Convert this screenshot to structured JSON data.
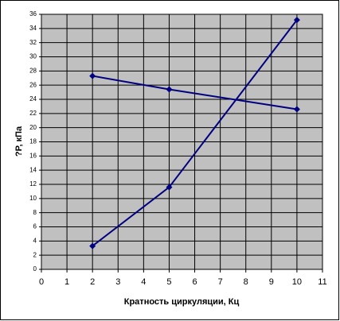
{
  "chart_data": {
    "type": "line",
    "ylabel": "?P, кПа",
    "xlabel": "Кратность циркуляции, Кц",
    "x": [
      2,
      5,
      10
    ],
    "series": [
      {
        "color": "#000080",
        "values": [
          27.3,
          25.4,
          22.6
        ]
      },
      {
        "color": "#000080",
        "values": [
          3.3,
          11.6,
          35.2
        ]
      }
    ],
    "xlim": [
      0,
      11
    ],
    "xticks": [
      0,
      1,
      2,
      3,
      4,
      5,
      6,
      7,
      8,
      9,
      10,
      11
    ],
    "ylim": [
      0,
      36
    ],
    "yticks": [
      0,
      2,
      4,
      6,
      8,
      10,
      12,
      14,
      16,
      18,
      20,
      22,
      24,
      26,
      28,
      30,
      32,
      34,
      36
    ],
    "grid": true,
    "plot_background": "#c0c0c0"
  }
}
